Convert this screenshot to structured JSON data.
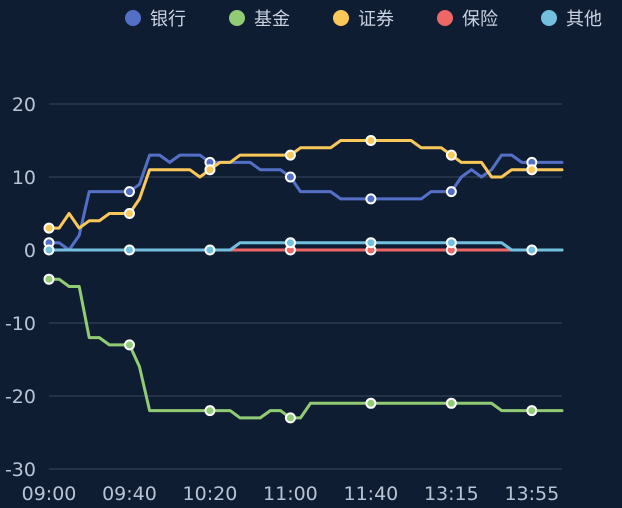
{
  "chart_data": {
    "type": "line",
    "title": "",
    "xlabel": "",
    "ylabel": "",
    "ylim": [
      -30,
      20
    ],
    "yticks": [
      20,
      10,
      0,
      -10,
      -20,
      -30
    ],
    "xtick_labels": [
      "09:00",
      "09:40",
      "10:20",
      "11:00",
      "11:40",
      "13:15",
      "13:55"
    ],
    "grid": true,
    "legend_position": "top-right",
    "series": [
      {
        "name": "银行",
        "color": "#5470c6",
        "values": [
          1,
          1,
          0,
          2,
          8,
          8,
          8,
          8,
          8,
          9,
          13,
          13,
          12,
          13,
          13,
          13,
          12,
          12,
          12,
          12,
          12,
          11,
          11,
          11,
          10,
          8,
          8,
          8,
          8,
          7,
          7,
          7,
          7,
          7,
          7,
          7,
          7,
          7,
          8,
          8,
          8,
          10,
          11,
          10,
          11,
          13,
          13,
          12,
          12,
          12,
          12,
          12
        ],
        "markers": [
          0,
          8,
          16,
          24,
          32,
          40,
          48
        ]
      },
      {
        "name": "基金",
        "color": "#91cc75",
        "values": [
          -4,
          -4,
          -5,
          -5,
          -12,
          -12,
          -13,
          -13,
          -13,
          -16,
          -22,
          -22,
          -22,
          -22,
          -22,
          -22,
          -22,
          -22,
          -22,
          -23,
          -23,
          -23,
          -22,
          -22,
          -23,
          -23,
          -21,
          -21,
          -21,
          -21,
          -21,
          -21,
          -21,
          -21,
          -21,
          -21,
          -21,
          -21,
          -21,
          -21,
          -21,
          -21,
          -21,
          -21,
          -21,
          -22,
          -22,
          -22,
          -22,
          -22,
          -22,
          -22
        ],
        "markers": [
          0,
          8,
          16,
          24,
          32,
          40,
          48
        ]
      },
      {
        "name": "证券",
        "color": "#fac858",
        "values": [
          3,
          3,
          5,
          3,
          4,
          4,
          5,
          5,
          5,
          7,
          11,
          11,
          11,
          11,
          11,
          10,
          11,
          12,
          12,
          13,
          13,
          13,
          13,
          13,
          13,
          14,
          14,
          14,
          14,
          15,
          15,
          15,
          15,
          15,
          15,
          15,
          15,
          14,
          14,
          14,
          13,
          12,
          12,
          12,
          10,
          10,
          11,
          11,
          11,
          11,
          11,
          11
        ],
        "markers": [
          0,
          8,
          16,
          24,
          32,
          40,
          48
        ]
      },
      {
        "name": "保险",
        "color": "#ee6666",
        "values": [
          0,
          0,
          0,
          0,
          0,
          0,
          0,
          0,
          0,
          0,
          0,
          0,
          0,
          0,
          0,
          0,
          0,
          0,
          0,
          0,
          0,
          0,
          0,
          0,
          0,
          0,
          0,
          0,
          0,
          0,
          0,
          0,
          0,
          0,
          0,
          0,
          0,
          0,
          0,
          0,
          0,
          0,
          0,
          0,
          0,
          0,
          0,
          0,
          0,
          0,
          0,
          0
        ],
        "markers": [
          24,
          32,
          40
        ]
      },
      {
        "name": "其他",
        "color": "#73c0de",
        "values": [
          0,
          0,
          0,
          0,
          0,
          0,
          0,
          0,
          0,
          0,
          0,
          0,
          0,
          0,
          0,
          0,
          0,
          0,
          0,
          1,
          1,
          1,
          1,
          1,
          1,
          1,
          1,
          1,
          1,
          1,
          1,
          1,
          1,
          1,
          1,
          1,
          1,
          1,
          1,
          1,
          1,
          1,
          1,
          1,
          1,
          1,
          0,
          0,
          0,
          0,
          0,
          0
        ],
        "markers": [
          0,
          8,
          16,
          24,
          32,
          40,
          48
        ]
      }
    ]
  }
}
